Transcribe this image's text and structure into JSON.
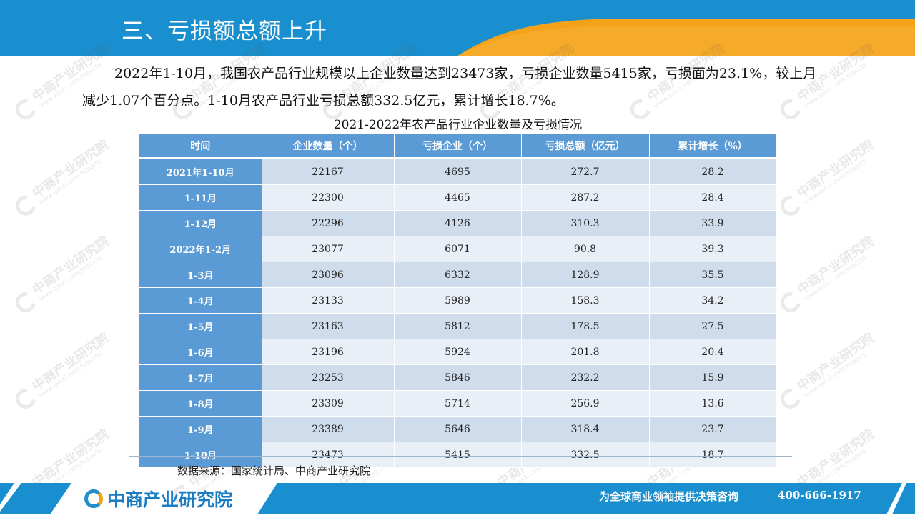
{
  "header": {
    "title": "三、亏损额总额上升"
  },
  "intro": {
    "paragraph": "2022年1-10月，我国农产品行业规模以上企业数量达到23473家，亏损企业数量5415家，亏损面为23.1%，较上月减少1.07个百分点。1-10月农产品行业亏损总额332.5亿元，累计增长18.7%。"
  },
  "table": {
    "caption": "2021-2022年农产品行业企业数量及亏损情况",
    "headers": [
      "时间",
      "企业数量（个）",
      "亏损企业（个）",
      "亏损总额（亿元）",
      "累计增长（%）"
    ],
    "rows": [
      [
        "2021年1-10月",
        "22167",
        "4695",
        "272.7",
        "28.2"
      ],
      [
        "1-11月",
        "22300",
        "4465",
        "287.2",
        "28.4"
      ],
      [
        "1-12月",
        "22296",
        "4126",
        "310.3",
        "33.9"
      ],
      [
        "2022年1-2月",
        "23077",
        "6071",
        "90.8",
        "39.3"
      ],
      [
        "1-3月",
        "23096",
        "6332",
        "128.9",
        "35.5"
      ],
      [
        "1-4月",
        "23133",
        "5989",
        "158.3",
        "34.2"
      ],
      [
        "1-5月",
        "23163",
        "5812",
        "178.5",
        "27.5"
      ],
      [
        "1-6月",
        "23196",
        "5924",
        "201.8",
        "20.4"
      ],
      [
        "1-7月",
        "23253",
        "5846",
        "232.2",
        "15.9"
      ],
      [
        "1-8月",
        "23309",
        "5714",
        "256.9",
        "13.6"
      ],
      [
        "1-9月",
        "23389",
        "5646",
        "318.4",
        "23.7"
      ],
      [
        "1-10月",
        "23473",
        "5415",
        "332.5",
        "18.7"
      ]
    ]
  },
  "source": {
    "text": "数据来源：国家统计局、中商产业研究院"
  },
  "footer": {
    "logo_text": "中商产业研究院",
    "slogan": "为全球商业领袖提供决策咨询",
    "phone": "400-666-1917"
  },
  "watermark": {
    "name": "中商产业研究院",
    "url": "www.askci.com/reports"
  },
  "colors": {
    "header_blue": "#1a8fcf",
    "accent_orange": "#f4a21a",
    "table_blue": "#5b9bd5",
    "row_light": "#e9eff7",
    "row_mid": "#cfdcec"
  }
}
